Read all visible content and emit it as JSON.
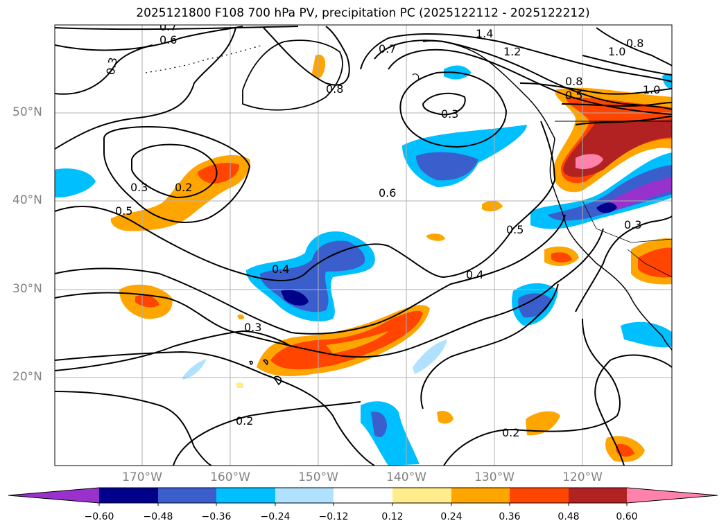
{
  "title": "2025121800 F108 700 hPa PV, precipitation PC (2025122112 - 2025122212)",
  "lat_labels": [
    "50°N",
    "40°N",
    "30°N",
    "20°N"
  ],
  "lon_labels": [
    "170°W",
    "160°W",
    "150°W",
    "140°W",
    "130°W",
    "120°W"
  ],
  "colorbar": {
    "colors": [
      "#9932cc",
      "#00008b",
      "#3a5fcd",
      "#00bfff",
      "#b0e2ff",
      "#ffffff",
      "#ffec8b",
      "#ffa500",
      "#ff4500",
      "#b22222",
      "#ff82ab"
    ],
    "ticks": [
      "−0.60",
      "−0.48",
      "−0.36",
      "−0.24",
      "−0.12",
      "0.12",
      "0.24",
      "0.36",
      "0.48",
      "0.60"
    ]
  },
  "contour_labels": [
    "0.7",
    "0.6",
    "0.3",
    "1.4",
    "1.2",
    "0.8",
    "1.0",
    "0.7",
    "0.8",
    "0.8",
    "0.5",
    "1.0",
    "0.3",
    "0.3",
    "0.2",
    "0.5",
    "0.6",
    "0.4",
    "0.5",
    "0.3",
    "0.4",
    "0.3",
    "0.2",
    "0.2"
  ]
}
